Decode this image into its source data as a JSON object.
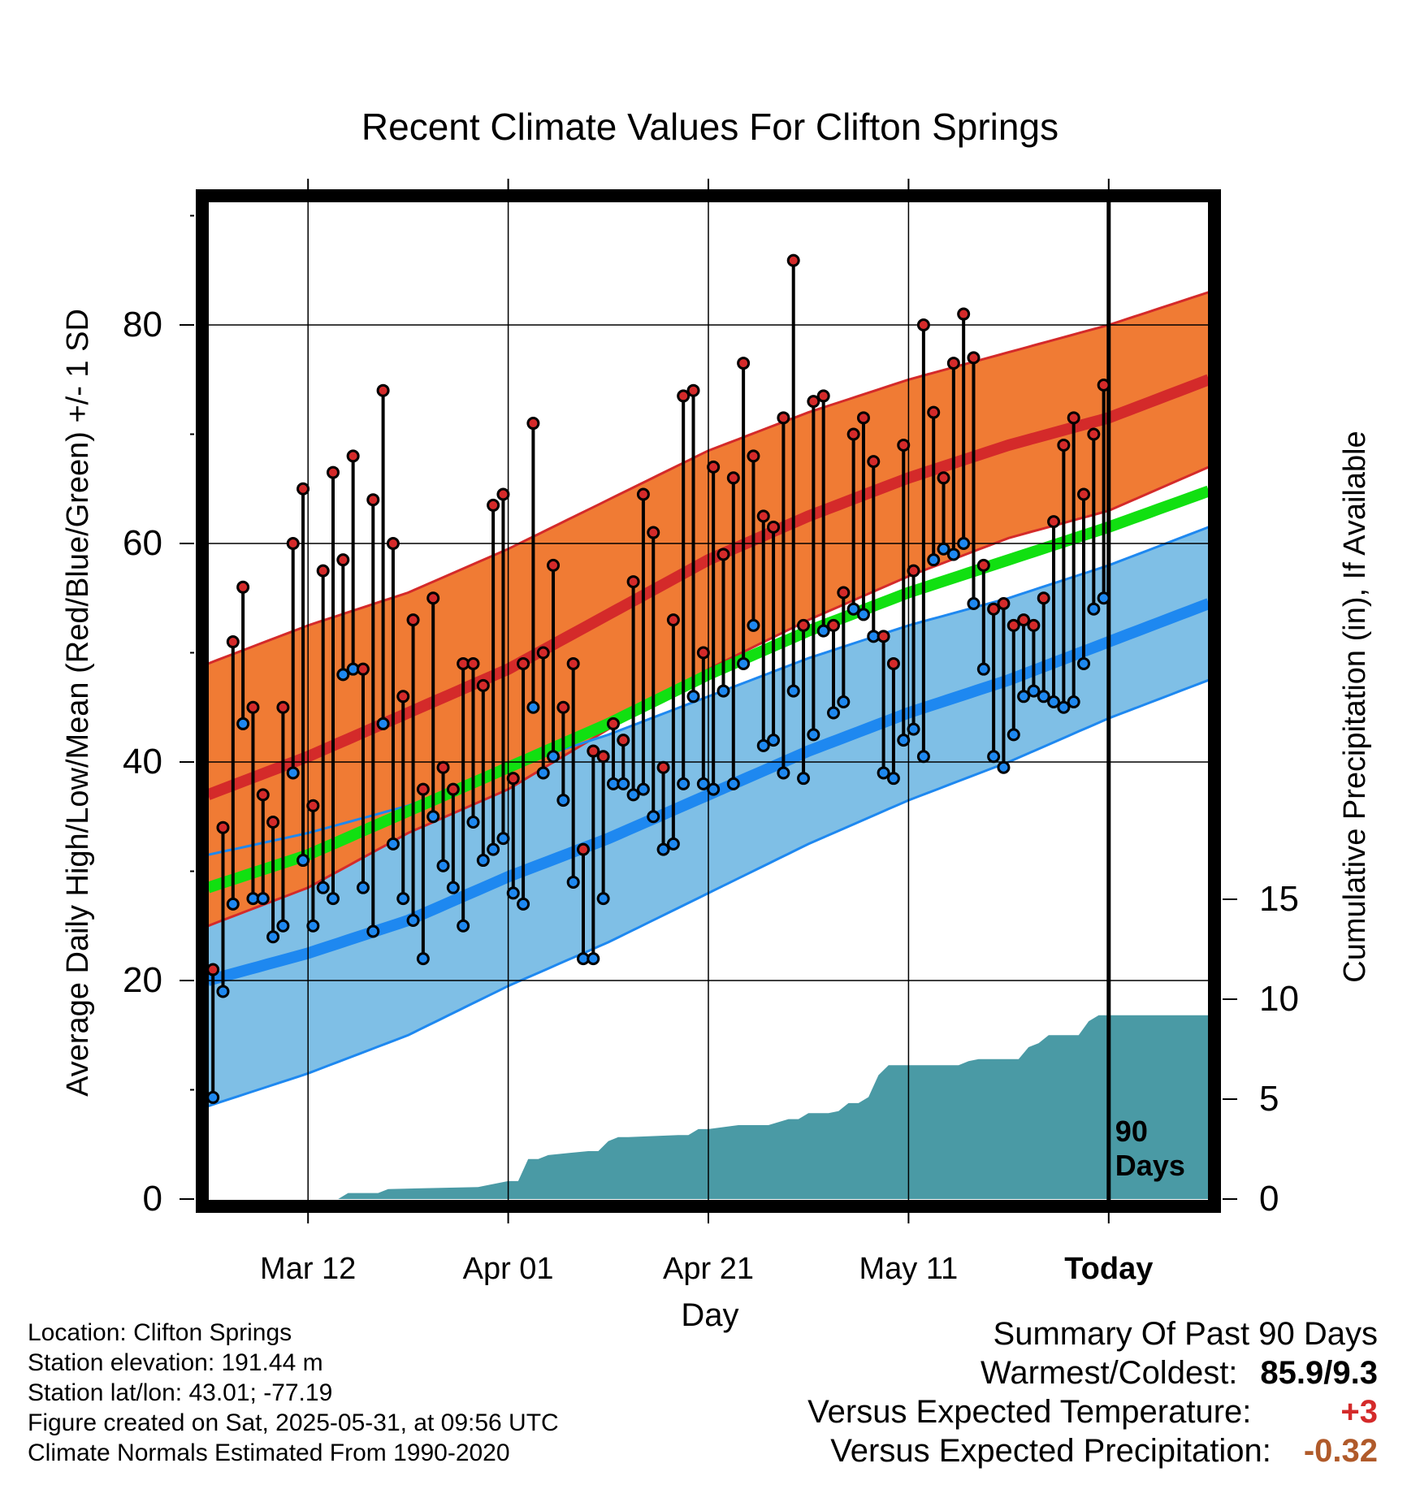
{
  "chart_data": {
    "type": "line",
    "title": "Recent Climate Values For Clifton Springs",
    "xlabel": "Day",
    "ylabel": "Average Daily High/Low/Mean (Red/Blue/Green) +/- 1 SD",
    "y2label": "Cumulative Precipitation (in), If Available",
    "ylim": [
      0,
      90
    ],
    "y2lim": [
      0,
      40
    ],
    "x_ticks": [
      "Mar 12",
      "Apr 01",
      "Apr 21",
      "May 11",
      "Today"
    ],
    "y_ticks": [
      "0",
      "20",
      "40",
      "60",
      "80"
    ],
    "y2_ticks": [
      "0",
      "5",
      "10",
      "15"
    ],
    "today_marker": "90\nDays",
    "colors": {
      "high_band": "#f07b34",
      "high_line": "#d42a2a",
      "low_band": "#7fbfe6",
      "low_line": "#1e88f0",
      "mean_line": "#11e011",
      "precip": "#4a9aa5",
      "frame": "#000000"
    },
    "normals_day_index": [
      0,
      10,
      20,
      30,
      40,
      50,
      60,
      70,
      80,
      90,
      100
    ],
    "normal_high": [
      37,
      40.5,
      44.5,
      48.5,
      53.5,
      58.5,
      62.5,
      66,
      69,
      71.5,
      75
    ],
    "normal_high_sd": [
      12,
      12,
      11,
      11,
      10.5,
      10,
      9.5,
      9,
      8.5,
      8.5,
      8
    ],
    "normal_low": [
      20,
      22.5,
      25.5,
      29.5,
      33,
      37,
      41,
      44.5,
      47.5,
      51,
      54.5
    ],
    "normal_low_sd": [
      11.5,
      11,
      10.5,
      10,
      9.5,
      9,
      8.5,
      8,
      7.5,
      7,
      7
    ],
    "normal_mean": [
      28.5,
      31.5,
      35.5,
      39.5,
      43.5,
      48,
      52,
      55.5,
      58.5,
      61.5,
      64.8
    ],
    "daily_high": [
      21,
      34,
      51,
      56,
      45,
      37,
      34.5,
      45,
      60,
      65,
      36,
      57.5,
      66.5,
      58.5,
      68,
      48.5,
      64,
      74,
      60,
      46,
      53,
      37.5,
      55,
      39.5,
      37.5,
      49,
      49,
      47,
      63.5,
      64.5,
      38.5,
      49,
      71,
      50,
      58,
      45,
      49,
      32,
      41,
      40.5,
      43.5,
      42,
      56.5,
      64.5,
      61,
      39.5,
      53,
      73.5,
      74,
      50,
      67,
      59,
      66,
      76.5,
      68,
      62.5,
      61.5,
      71.5,
      85.9,
      52.5,
      73,
      73.5,
      52.5,
      55.5,
      70,
      71.5,
      67.5,
      51.5,
      49,
      69,
      57.5,
      80,
      72,
      66,
      76.5,
      81,
      77,
      58,
      54,
      54.5,
      52.5,
      53,
      52.5,
      55,
      62,
      69,
      71.5,
      64.5,
      70,
      74.5
    ],
    "daily_low": [
      9.3,
      19,
      27,
      43.5,
      27.5,
      27.5,
      24,
      25,
      39,
      31,
      25,
      28.5,
      27.5,
      48,
      48.5,
      28.5,
      24.5,
      43.5,
      32.5,
      27.5,
      25.5,
      22,
      35,
      30.5,
      28.5,
      25,
      34.5,
      31,
      32,
      33,
      28,
      27,
      45,
      39,
      40.5,
      36.5,
      29,
      22,
      22,
      27.5,
      38,
      38,
      37,
      37.5,
      35,
      32,
      32.5,
      38,
      46,
      38,
      37.5,
      46.5,
      38,
      49,
      52.5,
      41.5,
      42,
      39,
      46.5,
      38.5,
      42.5,
      52,
      44.5,
      45.5,
      54,
      53.5,
      51.5,
      39,
      38.5,
      42,
      43,
      40.5,
      58.5,
      59.5,
      59,
      60,
      54.5,
      48.5,
      40.5,
      39.5,
      42.5,
      46,
      46.5,
      46,
      45.5,
      45,
      45.5,
      49,
      54,
      55
    ],
    "precip_day_index": [
      0,
      13,
      14,
      17,
      18,
      27,
      28,
      30,
      31,
      32,
      33,
      34,
      36,
      38,
      39,
      40,
      41,
      42,
      47,
      48,
      49,
      50,
      53,
      54,
      55,
      56,
      58,
      59,
      60,
      62,
      63,
      64,
      65,
      66,
      67,
      68,
      69,
      70,
      71,
      72,
      73,
      74,
      75,
      76,
      77,
      78,
      79,
      80,
      81,
      82,
      83,
      84,
      85,
      86,
      87,
      88,
      89,
      100
    ],
    "cumulative_precip": [
      0,
      0,
      0.3,
      0.3,
      0.5,
      0.6,
      0.7,
      0.9,
      0.9,
      2.0,
      2.0,
      2.2,
      2.3,
      2.4,
      2.4,
      2.9,
      3.1,
      3.1,
      3.2,
      3.2,
      3.5,
      3.5,
      3.7,
      3.7,
      3.7,
      3.7,
      4.0,
      4.0,
      4.3,
      4.3,
      4.4,
      4.8,
      4.8,
      5.1,
      6.2,
      6.7,
      6.7,
      6.7,
      6.7,
      6.7,
      6.7,
      6.7,
      6.7,
      6.9,
      7.0,
      7.0,
      7.0,
      7.0,
      7.0,
      7.6,
      7.8,
      8.2,
      8.2,
      8.2,
      8.2,
      8.9,
      9.2,
      9.2
    ]
  },
  "footer": {
    "location": "Location: Clifton Springs",
    "elevation": "Station elevation: 191.44 m",
    "latlon": "Station lat/lon: 43.01; -77.19",
    "created": "Figure created on Sat, 2025-05-31, at 09:56 UTC",
    "normals": "Climate Normals Estimated From 1990-2020"
  },
  "summary": {
    "title": "Summary Of Past 90 Days",
    "warm_cold_label": "Warmest/Coldest:",
    "warm_cold_value": "85.9/9.3",
    "temp_label": "Versus Expected Temperature:",
    "temp_value": "+3",
    "temp_color": "#d42a2a",
    "precip_label": "Versus Expected Precipitation:",
    "precip_value": "-0.32",
    "precip_color": "#b05a2a"
  }
}
